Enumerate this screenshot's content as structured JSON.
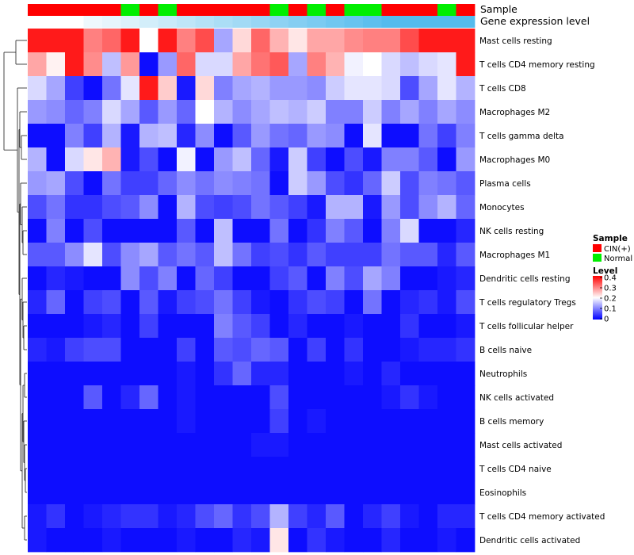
{
  "chart_data": {
    "type": "heatmap",
    "annotations": {
      "sample_label": "Sample",
      "level_label": "Gene expression level",
      "sample": [
        "CIN(+)",
        "CIN(+)",
        "CIN(+)",
        "CIN(+)",
        "CIN(+)",
        "Normal",
        "CIN(+)",
        "Normal",
        "CIN(+)",
        "CIN(+)",
        "CIN(+)",
        "CIN(+)",
        "CIN(+)",
        "Normal",
        "CIN(+)",
        "Normal",
        "CIN(+)",
        "Normal",
        "Normal",
        "CIN(+)",
        "CIN(+)",
        "CIN(+)",
        "Normal",
        "CIN(+)"
      ],
      "level_colors": [
        "#ffffff",
        "#ffffff",
        "#ffffff",
        "#eef8fd",
        "#e6f5fc",
        "#dcf1fb",
        "#d3eefa",
        "#c9eaf9",
        "#bfe6f8",
        "#b5e2f7",
        "#abdef6",
        "#a2daf5",
        "#98d6f4",
        "#8ed2f3",
        "#85cef2",
        "#7bcbf1",
        "#71c7f0",
        "#68c3ef",
        "#5ebfee",
        "#55bbed",
        "#55bbed",
        "#55bbed",
        "#55bbed",
        "#55bbed"
      ]
    },
    "rows": [
      "Mast cells resting",
      "T cells CD4 memory resting",
      "T cells CD8",
      "Macrophages M2",
      "T cells gamma delta",
      "Macrophages M0",
      "Plasma cells",
      "Monocytes",
      "NK cells resting",
      "Macrophages M1",
      "Dendritic cells resting",
      "T cells regulatory  Tregs",
      "T cells follicular helper",
      "B cells naive",
      "Neutrophils",
      "NK cells activated",
      "B cells memory",
      "Mast cells activated",
      "T cells CD4 naive",
      "Eosinophils",
      "T cells CD4 memory activated",
      "Dendritic cells activated"
    ],
    "values": [
      [
        0.38,
        0.38,
        0.38,
        0.3,
        0.32,
        0.38,
        0.2,
        0.38,
        0.3,
        0.34,
        0.13,
        0.23,
        0.32,
        0.26,
        0.22,
        0.27,
        0.27,
        0.29,
        0.3,
        0.3,
        0.34,
        0.38,
        0.38,
        0.38
      ],
      [
        0.27,
        0.21,
        0.38,
        0.29,
        0.15,
        0.28,
        0.01,
        0.12,
        0.32,
        0.17,
        0.17,
        0.27,
        0.31,
        0.33,
        0.13,
        0.3,
        0.26,
        0.19,
        0.2,
        0.17,
        0.15,
        0.17,
        0.18,
        0.38
      ],
      [
        0.17,
        0.13,
        0.05,
        0.01,
        0.09,
        0.18,
        0.38,
        0.24,
        0.02,
        0.23,
        0.1,
        0.13,
        0.14,
        0.12,
        0.12,
        0.11,
        0.16,
        0.18,
        0.18,
        0.17,
        0.06,
        0.13,
        0.18,
        0.14
      ],
      [
        0.12,
        0.11,
        0.08,
        0.1,
        0.17,
        0.13,
        0.07,
        0.12,
        0.08,
        0.2,
        0.14,
        0.11,
        0.13,
        0.15,
        0.14,
        0.16,
        0.1,
        0.1,
        0.16,
        0.1,
        0.13,
        0.1,
        0.13,
        0.11
      ],
      [
        0.01,
        0.01,
        0.1,
        0.05,
        0.14,
        0.02,
        0.14,
        0.15,
        0.03,
        0.11,
        0.01,
        0.07,
        0.12,
        0.09,
        0.08,
        0.12,
        0.11,
        0.01,
        0.18,
        0.01,
        0.01,
        0.09,
        0.05,
        0.1
      ],
      [
        0.14,
        0.01,
        0.17,
        0.22,
        0.26,
        0.02,
        0.06,
        0.01,
        0.19,
        0.01,
        0.12,
        0.15,
        0.08,
        0.02,
        0.16,
        0.05,
        0.01,
        0.06,
        0.02,
        0.1,
        0.1,
        0.07,
        0.01,
        0.12
      ],
      [
        0.12,
        0.13,
        0.06,
        0.01,
        0.09,
        0.05,
        0.05,
        0.08,
        0.11,
        0.09,
        0.11,
        0.1,
        0.09,
        0.01,
        0.16,
        0.12,
        0.06,
        0.04,
        0.08,
        0.16,
        0.06,
        0.1,
        0.09,
        0.07
      ],
      [
        0.06,
        0.09,
        0.04,
        0.04,
        0.06,
        0.07,
        0.11,
        0.01,
        0.14,
        0.06,
        0.05,
        0.06,
        0.09,
        0.07,
        0.05,
        0.02,
        0.14,
        0.14,
        0.02,
        0.12,
        0.06,
        0.11,
        0.14,
        0.08
      ],
      [
        0.01,
        0.1,
        0.01,
        0.06,
        0.01,
        0.01,
        0.01,
        0.01,
        0.07,
        0.01,
        0.15,
        0.01,
        0.01,
        0.09,
        0.01,
        0.04,
        0.1,
        0.07,
        0.01,
        0.1,
        0.17,
        0.01,
        0.01,
        0.03
      ],
      [
        0.07,
        0.07,
        0.11,
        0.18,
        0.06,
        0.11,
        0.13,
        0.07,
        0.09,
        0.07,
        0.15,
        0.09,
        0.05,
        0.06,
        0.04,
        0.07,
        0.05,
        0.05,
        0.05,
        0.09,
        0.07,
        0.07,
        0.03,
        0.07
      ],
      [
        0.01,
        0.03,
        0.02,
        0.01,
        0.01,
        0.11,
        0.06,
        0.1,
        0.01,
        0.08,
        0.05,
        0.01,
        0.01,
        0.05,
        0.07,
        0.01,
        0.1,
        0.06,
        0.13,
        0.1,
        0.01,
        0.01,
        0.02,
        0.03
      ],
      [
        0.03,
        0.08,
        0.01,
        0.05,
        0.06,
        0.01,
        0.07,
        0.02,
        0.05,
        0.06,
        0.09,
        0.05,
        0.02,
        0.01,
        0.04,
        0.06,
        0.05,
        0.01,
        0.09,
        0.01,
        0.03,
        0.04,
        0.02,
        0.06
      ],
      [
        0.01,
        0.01,
        0.01,
        0.02,
        0.03,
        0.01,
        0.05,
        0.01,
        0.01,
        0.01,
        0.1,
        0.07,
        0.05,
        0.01,
        0.03,
        0.01,
        0.01,
        0.02,
        0.01,
        0.01,
        0.04,
        0.01,
        0.01,
        0.02
      ],
      [
        0.03,
        0.02,
        0.05,
        0.06,
        0.06,
        0.01,
        0.01,
        0.01,
        0.05,
        0.01,
        0.07,
        0.06,
        0.08,
        0.07,
        0.01,
        0.05,
        0.01,
        0.04,
        0.01,
        0.01,
        0.02,
        0.03,
        0.03,
        0.04
      ],
      [
        0.01,
        0.01,
        0.01,
        0.01,
        0.01,
        0.01,
        0.01,
        0.01,
        0.02,
        0.01,
        0.04,
        0.08,
        0.03,
        0.03,
        0.01,
        0.01,
        0.01,
        0.02,
        0.01,
        0.03,
        0.01,
        0.01,
        0.01,
        0.01
      ],
      [
        0.01,
        0.01,
        0.01,
        0.07,
        0.01,
        0.03,
        0.08,
        0.01,
        0.02,
        0.01,
        0.01,
        0.01,
        0.01,
        0.06,
        0.01,
        0.01,
        0.01,
        0.01,
        0.01,
        0.02,
        0.04,
        0.02,
        0.01,
        0.01
      ],
      [
        0.01,
        0.01,
        0.01,
        0.01,
        0.01,
        0.01,
        0.01,
        0.01,
        0.02,
        0.01,
        0.01,
        0.01,
        0.01,
        0.05,
        0.01,
        0.02,
        0.01,
        0.01,
        0.01,
        0.01,
        0.01,
        0.01,
        0.01,
        0.01
      ],
      [
        0.01,
        0.01,
        0.01,
        0.01,
        0.01,
        0.01,
        0.01,
        0.01,
        0.01,
        0.01,
        0.01,
        0.01,
        0.02,
        0.02,
        0.01,
        0.01,
        0.01,
        0.01,
        0.01,
        0.01,
        0.01,
        0.01,
        0.01,
        0.01
      ],
      [
        0.01,
        0.01,
        0.01,
        0.01,
        0.01,
        0.01,
        0.01,
        0.01,
        0.01,
        0.01,
        0.01,
        0.01,
        0.01,
        0.01,
        0.01,
        0.01,
        0.01,
        0.01,
        0.01,
        0.01,
        0.01,
        0.01,
        0.01,
        0.01
      ],
      [
        0.01,
        0.01,
        0.01,
        0.01,
        0.01,
        0.01,
        0.01,
        0.01,
        0.01,
        0.01,
        0.01,
        0.01,
        0.01,
        0.01,
        0.01,
        0.01,
        0.01,
        0.01,
        0.01,
        0.01,
        0.01,
        0.01,
        0.01,
        0.01
      ],
      [
        0.02,
        0.04,
        0.01,
        0.02,
        0.03,
        0.04,
        0.04,
        0.02,
        0.03,
        0.06,
        0.08,
        0.04,
        0.06,
        0.14,
        0.05,
        0.03,
        0.07,
        0.01,
        0.03,
        0.05,
        0.02,
        0.01,
        0.03,
        0.03
      ],
      [
        0.02,
        0.01,
        0.01,
        0.01,
        0.02,
        0.01,
        0.01,
        0.01,
        0.02,
        0.01,
        0.01,
        0.03,
        0.02,
        0.22,
        0.01,
        0.04,
        0.02,
        0.01,
        0.01,
        0.03,
        0.01,
        0.01,
        0.02,
        0.01
      ]
    ],
    "color_scale": {
      "min": 0,
      "max": 0.4,
      "low": "#0000ff",
      "mid": "#ffffff",
      "high": "#ff0000",
      "mid_value": 0.2
    },
    "legend": {
      "sample_title": "Sample",
      "sample_items": [
        {
          "label": "CIN(+)",
          "color": "#ff0000"
        },
        {
          "label": "Normal",
          "color": "#00ee00"
        }
      ],
      "level_title": "Level",
      "level_ticks": [
        "0.4",
        "0.3",
        "0.2",
        "0.1",
        "0"
      ]
    },
    "position": "legend right"
  }
}
